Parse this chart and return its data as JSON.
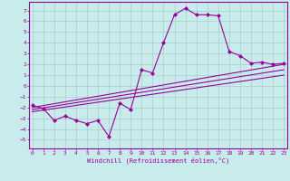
{
  "title": "",
  "xlabel": "Windchill (Refroidissement éolien,°C)",
  "ylabel": "",
  "bg_color": "#c8ecec",
  "line_color": "#990099",
  "grid_color": "#aacccc",
  "x_ticks": [
    0,
    1,
    2,
    3,
    4,
    5,
    6,
    7,
    8,
    9,
    10,
    11,
    12,
    13,
    14,
    15,
    16,
    17,
    18,
    19,
    20,
    21,
    22,
    23
  ],
  "y_ticks": [
    -5,
    -4,
    -3,
    -2,
    -1,
    0,
    1,
    2,
    3,
    4,
    5,
    6,
    7
  ],
  "ylim": [
    -5.8,
    7.8
  ],
  "xlim": [
    -0.3,
    23.3
  ],
  "jagged_x": [
    0,
    1,
    2,
    3,
    4,
    5,
    6,
    7,
    8,
    9,
    10,
    11,
    12,
    13,
    14,
    15,
    16,
    17,
    18,
    19,
    20,
    21,
    22,
    23
  ],
  "jagged_y": [
    -1.8,
    -2.1,
    -3.2,
    -2.8,
    -3.2,
    -3.5,
    -3.2,
    -4.7,
    -1.6,
    -2.2,
    1.5,
    1.2,
    4.0,
    6.6,
    7.2,
    6.6,
    6.6,
    6.5,
    3.2,
    2.8,
    2.1,
    2.2,
    2.0,
    2.1
  ],
  "line1_x": [
    0,
    23
  ],
  "line1_y": [
    -2.0,
    2.0
  ],
  "line2_x": [
    0,
    23
  ],
  "line2_y": [
    -2.2,
    1.5
  ],
  "line3_x": [
    0,
    23
  ],
  "line3_y": [
    -2.4,
    1.0
  ]
}
